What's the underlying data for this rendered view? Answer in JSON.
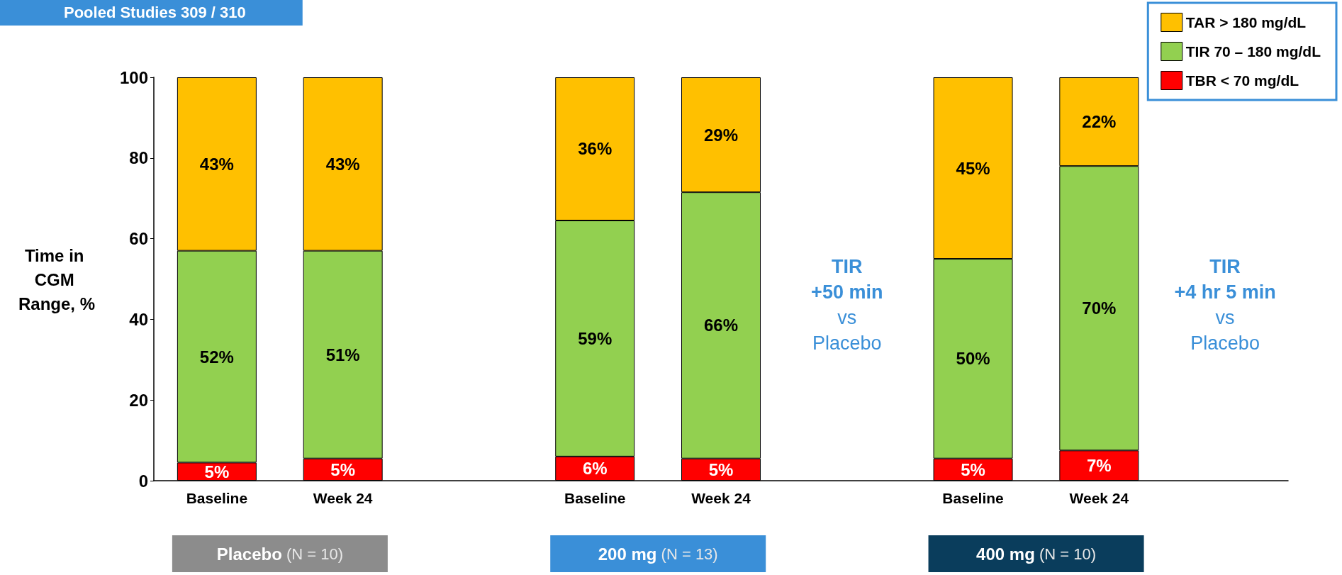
{
  "chart_data": {
    "type": "bar",
    "title": "Pooled Studies 309 / 310",
    "ylabel": "Time in CGM Range, %",
    "categories": [
      "Baseline",
      "Week 24",
      null,
      "Baseline",
      "Week 24",
      null,
      "Baseline",
      "Week 24",
      null
    ],
    "series": [
      {
        "name": "TBR < 70 mg/dL",
        "color": "#ff0000",
        "values": [
          4.5,
          5.5,
          null,
          6,
          5.5,
          null,
          5.5,
          7.5,
          null
        ],
        "value_labels": [
          "5%",
          "5%",
          null,
          "6%",
          "5%",
          null,
          "5%",
          "7%",
          null
        ]
      },
      {
        "name": "TIR 70 – 180 mg/dL",
        "color": "#92d050",
        "values": [
          52.5,
          51.5,
          null,
          58.5,
          66,
          null,
          49.5,
          70.5,
          null
        ],
        "value_labels": [
          "52%",
          "51%",
          null,
          "59%",
          "66%",
          null,
          "50%",
          "70%",
          null
        ]
      },
      {
        "name": "TAR > 180 mg/dL",
        "color": "#ffc000",
        "values": [
          43,
          43,
          null,
          35.5,
          28.5,
          null,
          45,
          22,
          null
        ],
        "value_labels": [
          "43%",
          "43%",
          null,
          "36%",
          "29%",
          null,
          "45%",
          "22%",
          null
        ]
      }
    ],
    "stacked": true,
    "ylim": [
      0,
      100
    ],
    "yticks": [
      0,
      20,
      40,
      60,
      80,
      100
    ],
    "grid": false,
    "legend": "top right",
    "annotations": [
      "Placebo (N = 10)",
      "200 mg (N = 13)",
      "400 mg (N = 10)",
      "TIR\n+50 min\nvs\nPlacebo",
      "TIR\n+4 hr 5 min\nvs\nPlacebo"
    ]
  }
}
